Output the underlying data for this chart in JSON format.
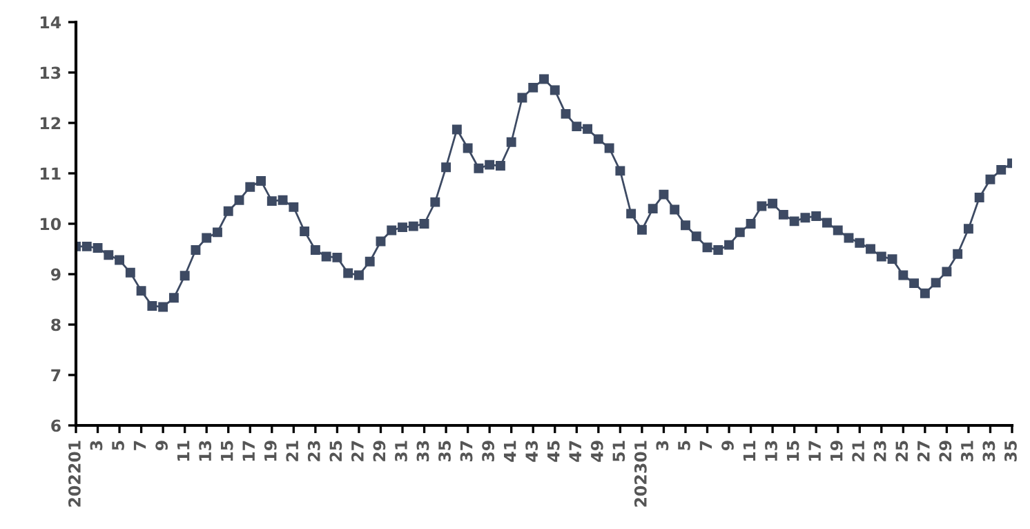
{
  "chart_data": {
    "type": "line",
    "categories": [
      "202201",
      null,
      "3",
      null,
      "5",
      null,
      "7",
      null,
      "9",
      null,
      "11",
      null,
      "13",
      null,
      "15",
      null,
      "17",
      null,
      "19",
      null,
      "21",
      null,
      "23",
      null,
      "25",
      null,
      "27",
      null,
      "29",
      null,
      "31",
      null,
      "33",
      null,
      "35",
      null,
      "37",
      null,
      "39",
      null,
      "41",
      null,
      "43",
      null,
      "45",
      null,
      "47",
      null,
      "49",
      null,
      "51",
      null,
      "202301",
      null,
      "3",
      null,
      "5",
      null,
      "7",
      null,
      "9",
      null,
      "11",
      null,
      "13",
      null,
      "15",
      null,
      "17",
      null,
      "19",
      null,
      "21",
      null,
      "23",
      null,
      "25",
      null,
      "27",
      null,
      "29",
      null,
      "31",
      null,
      "33",
      null,
      "35"
    ],
    "series": [
      {
        "color": "#3d4a63",
        "values": [
          9.55,
          9.55,
          9.52,
          9.38,
          9.28,
          9.03,
          8.67,
          8.37,
          8.35,
          8.53,
          8.97,
          9.48,
          9.72,
          9.83,
          10.25,
          10.47,
          10.73,
          10.85,
          10.45,
          10.47,
          10.33,
          9.85,
          9.48,
          9.35,
          9.33,
          9.02,
          8.98,
          9.25,
          9.65,
          9.87,
          9.93,
          9.95,
          10.0,
          10.43,
          11.12,
          11.87,
          11.5,
          11.1,
          11.17,
          11.15,
          11.62,
          12.5,
          12.7,
          12.87,
          12.65,
          12.18,
          11.93,
          11.88,
          11.68,
          11.5,
          11.05,
          10.2,
          9.88,
          10.3,
          10.58,
          10.28,
          9.97,
          9.75,
          9.53,
          9.48,
          9.58,
          9.83,
          10.0,
          10.35,
          10.4,
          10.18,
          10.05,
          10.12,
          10.15,
          10.02,
          9.87,
          9.72,
          9.62,
          9.5,
          9.35,
          9.3,
          8.98,
          8.82,
          8.62,
          8.83,
          9.05,
          9.4,
          9.9,
          10.52,
          10.88,
          11.07,
          11.2
        ]
      }
    ],
    "ylim": [
      6,
      14
    ],
    "yticks": [
      6,
      7,
      8,
      9,
      10,
      11,
      12,
      13,
      14
    ],
    "marker": "square",
    "line_style": "solid",
    "grid": false
  }
}
